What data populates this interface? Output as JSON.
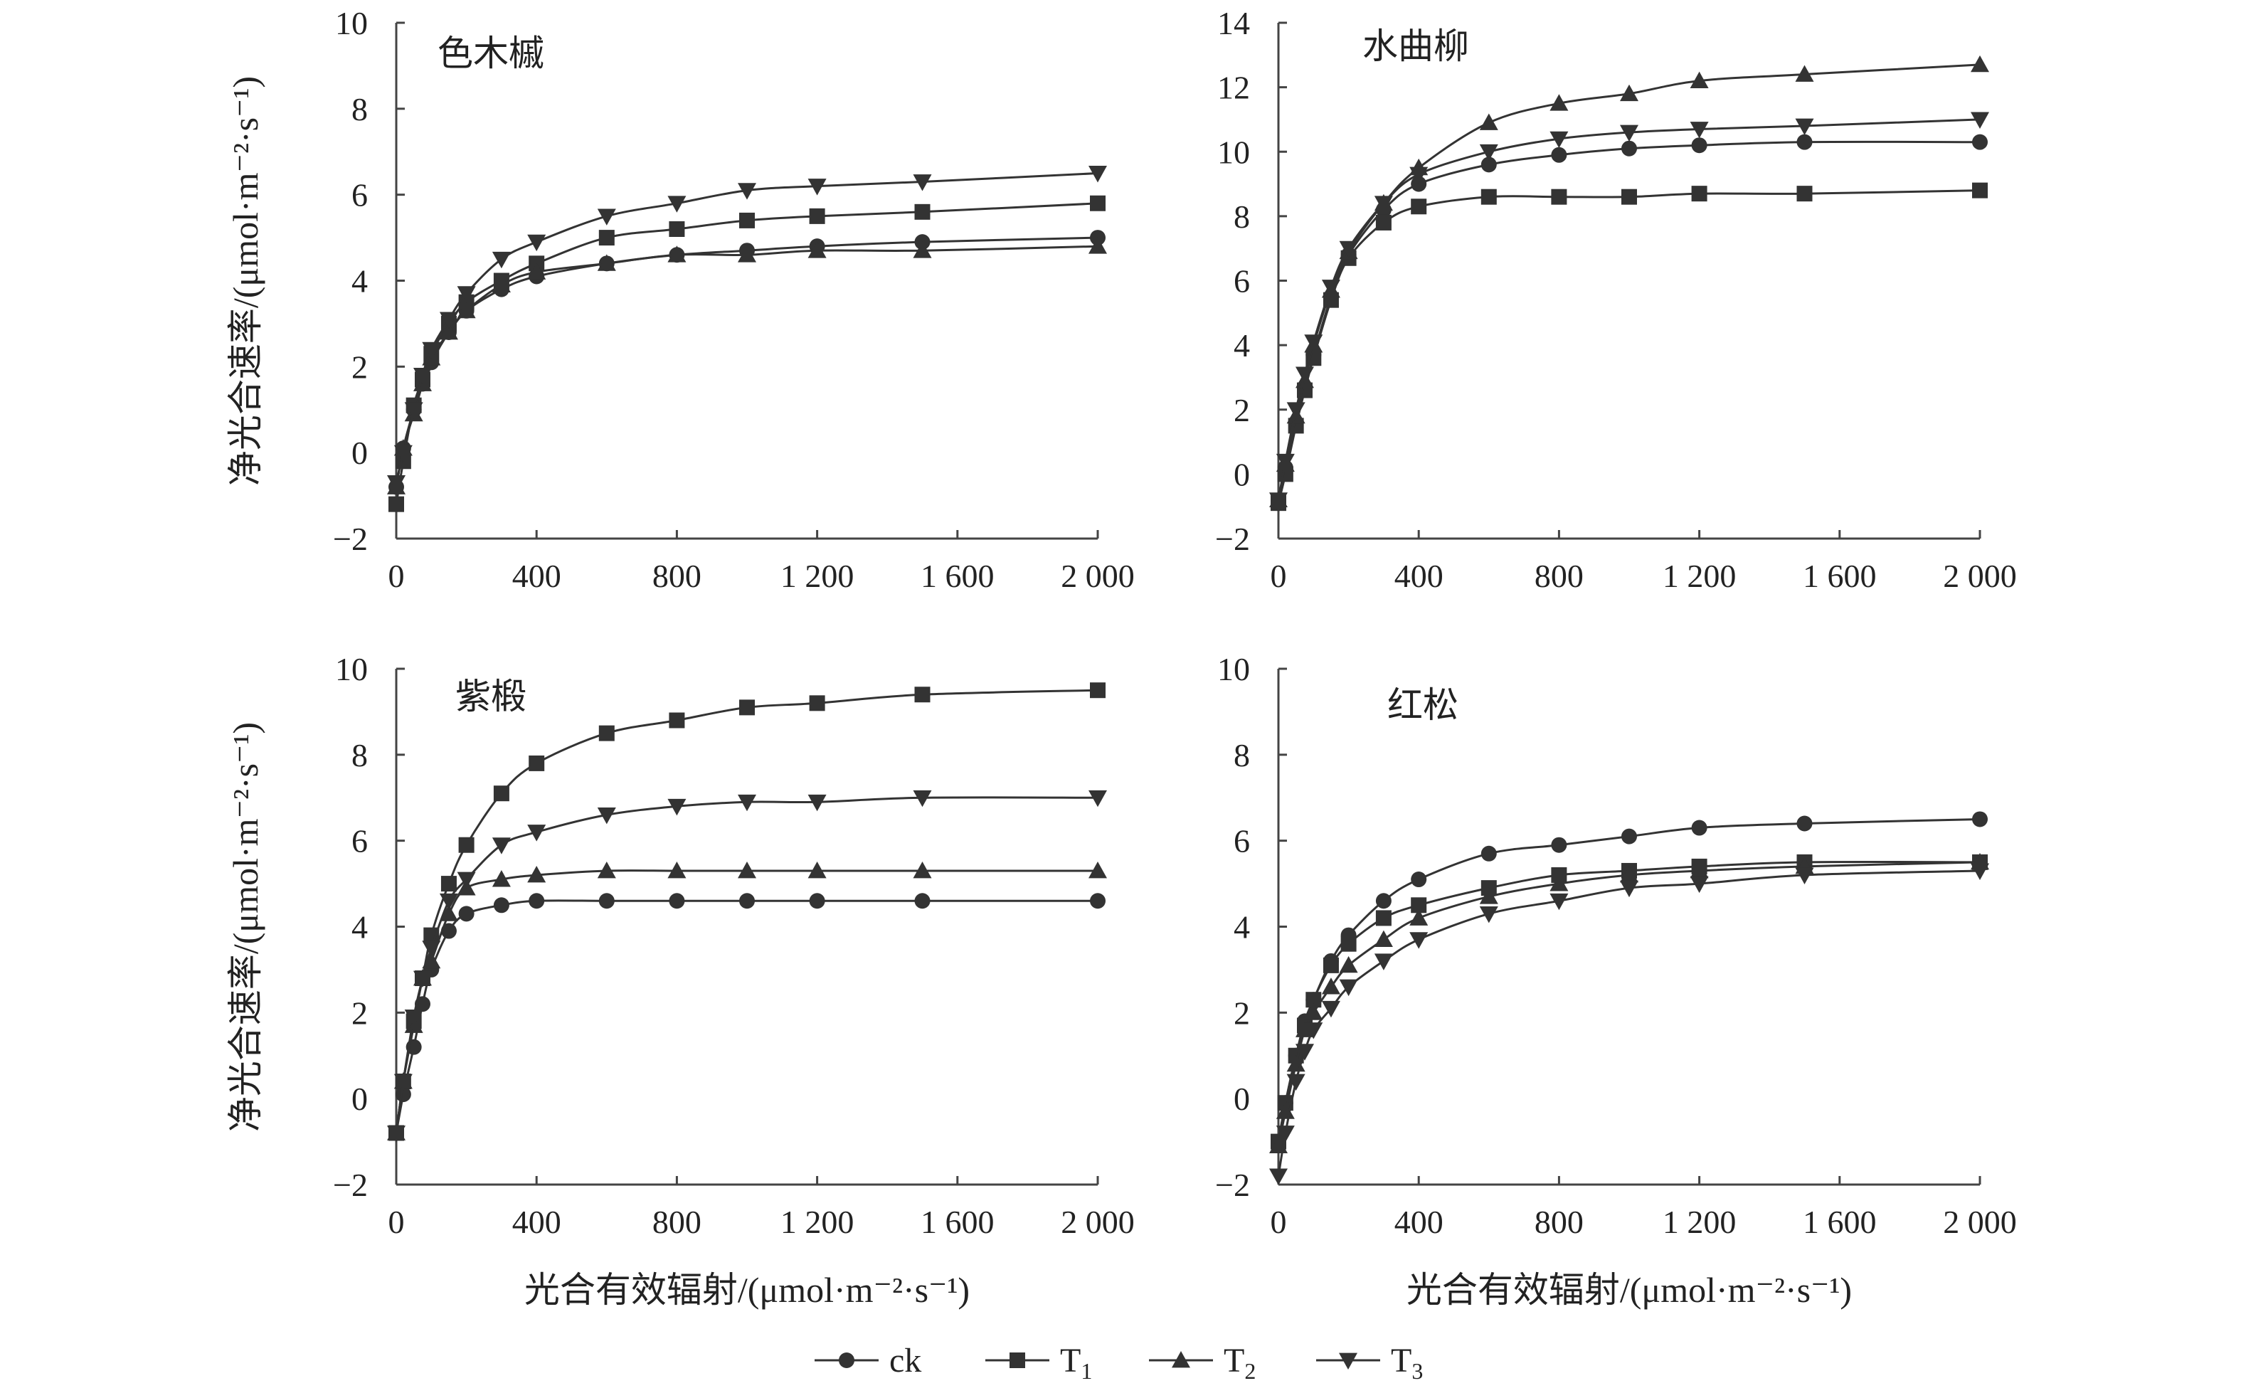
{
  "figure": {
    "x_axis_title": "光合有效辐射/(μmol·m⁻²·s⁻¹)",
    "y_axis_title": "净光合速率/(μmol·m⁻²·s⁻¹)",
    "legend": [
      {
        "key": "ck",
        "label": "ck",
        "sub": "",
        "marker": "circle"
      },
      {
        "key": "T1",
        "label": "T",
        "sub": "1",
        "marker": "square"
      },
      {
        "key": "T2",
        "label": "T",
        "sub": "2",
        "marker": "triangle-up"
      },
      {
        "key": "T3",
        "label": "T",
        "sub": "3",
        "marker": "triangle-down"
      }
    ],
    "line_color": "#333333"
  },
  "chart_data": [
    {
      "type": "line",
      "title": "色木槭",
      "x": [
        0,
        20,
        50,
        75,
        100,
        150,
        200,
        300,
        400,
        600,
        800,
        1000,
        1200,
        1500,
        2000
      ],
      "xlim": [
        0,
        2000
      ],
      "ylim": [
        -2,
        10
      ],
      "xticks": [
        0,
        400,
        800,
        1200,
        1600,
        2000
      ],
      "xtick_labels": [
        "0",
        "400",
        "800",
        "1 200",
        "1 600",
        "2 000"
      ],
      "yticks": [
        -2,
        0,
        2,
        4,
        6,
        8,
        10
      ],
      "ytick_labels": [
        "−2",
        "0",
        "2",
        "4",
        "6",
        "8",
        "10"
      ],
      "series": [
        {
          "key": "ck",
          "values": [
            -0.8,
            0.1,
            1.0,
            1.6,
            2.1,
            2.8,
            3.3,
            3.8,
            4.1,
            4.4,
            4.6,
            4.7,
            4.8,
            4.9,
            5.0
          ]
        },
        {
          "key": "T1",
          "values": [
            -1.2,
            -0.2,
            1.1,
            1.7,
            2.3,
            3.0,
            3.5,
            4.0,
            4.4,
            5.0,
            5.2,
            5.4,
            5.5,
            5.6,
            5.8
          ]
        },
        {
          "key": "T2",
          "values": [
            -0.8,
            0.1,
            0.9,
            1.6,
            2.2,
            2.8,
            3.3,
            3.9,
            4.2,
            4.4,
            4.6,
            4.6,
            4.7,
            4.7,
            4.8
          ]
        },
        {
          "key": "T3",
          "values": [
            -0.7,
            0.0,
            1.0,
            1.8,
            2.4,
            3.1,
            3.7,
            4.5,
            4.9,
            5.5,
            5.8,
            6.1,
            6.2,
            6.3,
            6.5
          ]
        }
      ]
    },
    {
      "type": "line",
      "title": "水曲柳",
      "x": [
        0,
        20,
        50,
        75,
        100,
        150,
        200,
        300,
        400,
        600,
        800,
        1000,
        1200,
        1500,
        2000
      ],
      "xlim": [
        0,
        2000
      ],
      "ylim": [
        -2,
        14
      ],
      "xticks": [
        0,
        400,
        800,
        1200,
        1600,
        2000
      ],
      "xtick_labels": [
        "0",
        "400",
        "800",
        "1 200",
        "1 600",
        "2 000"
      ],
      "yticks": [
        -2,
        0,
        2,
        4,
        6,
        8,
        10,
        12,
        14
      ],
      "ytick_labels": [
        "−2",
        "0",
        "2",
        "4",
        "6",
        "8",
        "10",
        "12",
        "14"
      ],
      "series": [
        {
          "key": "ck",
          "values": [
            -0.9,
            0.2,
            1.6,
            2.7,
            3.7,
            5.5,
            6.8,
            8.2,
            9.0,
            9.6,
            9.9,
            10.1,
            10.2,
            10.3,
            10.3
          ]
        },
        {
          "key": "T1",
          "values": [
            -0.9,
            0.0,
            1.5,
            2.6,
            3.6,
            5.4,
            6.7,
            7.8,
            8.3,
            8.6,
            8.6,
            8.6,
            8.7,
            8.7,
            8.8
          ]
        },
        {
          "key": "T2",
          "values": [
            -0.8,
            0.3,
            1.8,
            2.9,
            4.0,
            5.7,
            6.9,
            8.4,
            9.5,
            10.9,
            11.5,
            11.8,
            12.2,
            12.4,
            12.7
          ]
        },
        {
          "key": "T3",
          "values": [
            -0.8,
            0.4,
            2.0,
            3.1,
            4.1,
            5.8,
            7.0,
            8.4,
            9.3,
            10.0,
            10.4,
            10.6,
            10.7,
            10.8,
            11.0
          ]
        }
      ]
    },
    {
      "type": "line",
      "title": "紫椴",
      "x": [
        0,
        20,
        50,
        75,
        100,
        150,
        200,
        300,
        400,
        600,
        800,
        1000,
        1200,
        1500,
        2000
      ],
      "xlim": [
        0,
        2000
      ],
      "ylim": [
        -2,
        10
      ],
      "xticks": [
        0,
        400,
        800,
        1200,
        1600,
        2000
      ],
      "xtick_labels": [
        "0",
        "400",
        "800",
        "1 200",
        "1 600",
        "2 000"
      ],
      "yticks": [
        -2,
        0,
        2,
        4,
        6,
        8,
        10
      ],
      "ytick_labels": [
        "−2",
        "0",
        "2",
        "4",
        "6",
        "8",
        "10"
      ],
      "series": [
        {
          "key": "ck",
          "values": [
            -0.8,
            0.1,
            1.2,
            2.2,
            3.0,
            3.9,
            4.3,
            4.5,
            4.6,
            4.6,
            4.6,
            4.6,
            4.6,
            4.6,
            4.6
          ]
        },
        {
          "key": "T1",
          "values": [
            -0.8,
            0.4,
            1.8,
            2.8,
            3.8,
            5.0,
            5.9,
            7.1,
            7.8,
            8.5,
            8.8,
            9.1,
            9.2,
            9.4,
            9.5
          ]
        },
        {
          "key": "T2",
          "values": [
            -0.8,
            0.4,
            1.7,
            2.8,
            3.2,
            4.3,
            4.9,
            5.1,
            5.2,
            5.3,
            5.3,
            5.3,
            5.3,
            5.3,
            5.3
          ]
        },
        {
          "key": "T3",
          "values": [
            -0.8,
            0.4,
            1.9,
            2.8,
            3.5,
            4.6,
            5.1,
            5.9,
            6.2,
            6.6,
            6.8,
            6.9,
            6.9,
            7.0,
            7.0
          ]
        }
      ]
    },
    {
      "type": "line",
      "title": "红松",
      "x": [
        0,
        20,
        50,
        75,
        100,
        150,
        200,
        300,
        400,
        600,
        800,
        1000,
        1200,
        1500,
        2000
      ],
      "xlim": [
        0,
        2000
      ],
      "ylim": [
        -2,
        10
      ],
      "xticks": [
        0,
        400,
        800,
        1200,
        1600,
        2000
      ],
      "xtick_labels": [
        "0",
        "400",
        "800",
        "1 200",
        "1 600",
        "2 000"
      ],
      "yticks": [
        -2,
        0,
        2,
        4,
        6,
        8,
        10
      ],
      "ytick_labels": [
        "−2",
        "0",
        "2",
        "4",
        "6",
        "8",
        "10"
      ],
      "series": [
        {
          "key": "ck",
          "values": [
            -1.0,
            -0.1,
            1.0,
            1.8,
            2.3,
            3.2,
            3.8,
            4.6,
            5.1,
            5.7,
            5.9,
            6.1,
            6.3,
            6.4,
            6.5
          ]
        },
        {
          "key": "T1",
          "values": [
            -1.0,
            -0.1,
            1.0,
            1.7,
            2.3,
            3.1,
            3.6,
            4.2,
            4.5,
            4.9,
            5.2,
            5.3,
            5.4,
            5.5,
            5.5
          ]
        },
        {
          "key": "T2",
          "values": [
            -1.1,
            -0.3,
            0.8,
            1.6,
            2.0,
            2.6,
            3.1,
            3.7,
            4.2,
            4.7,
            5.0,
            5.2,
            5.3,
            5.4,
            5.5
          ]
        },
        {
          "key": "T3",
          "values": [
            -1.8,
            -0.8,
            0.4,
            1.1,
            1.6,
            2.1,
            2.6,
            3.2,
            3.7,
            4.3,
            4.6,
            4.9,
            5.0,
            5.2,
            5.3
          ]
        }
      ]
    }
  ]
}
